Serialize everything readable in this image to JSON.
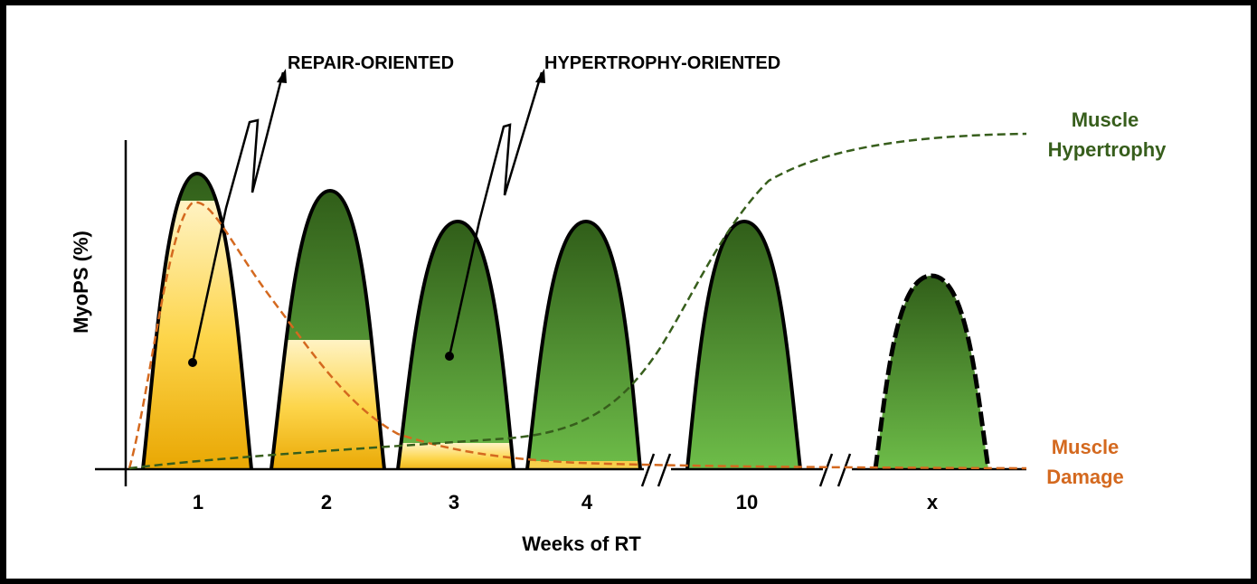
{
  "diagram": {
    "y_axis_label": "MyoPS (%)",
    "x_axis_label": "Weeks of RT",
    "weeks": [
      "1",
      "2",
      "3",
      "4",
      "10",
      "x"
    ],
    "callouts": {
      "repair": "REPAIR-ORIENTED",
      "hypertrophy": "HYPERTROPHY-ORIENTED"
    },
    "curves": {
      "hypertrophy": {
        "line1": "Muscle",
        "line2": "Hypertrophy",
        "color": "#375e1c"
      },
      "damage": {
        "line1": "Muscle",
        "line2": "Damage",
        "color": "#d4691f"
      }
    },
    "colors": {
      "green_dark": "#2e5a17",
      "green_light": "#6fbf4a",
      "yellow_top": "#fff3c4",
      "yellow_bottom": "#e8a500"
    }
  }
}
